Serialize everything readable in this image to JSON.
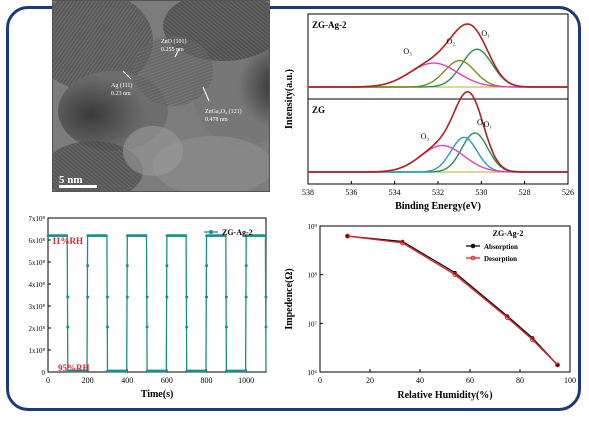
{
  "colors": {
    "frame": "#1c3a78",
    "teal": "#1a8f8a",
    "red": "#e0202a",
    "black": "#111111"
  },
  "tem": {
    "scale_bar": "5 nm",
    "labels": [
      {
        "line1": "Ag (111)",
        "line2": "0.23 nm"
      },
      {
        "line1": "ZnO (101)",
        "line2": "0.255 nm"
      },
      {
        "line1": "ZnGa₂O₄ (121)",
        "line2": "0.478 nm"
      }
    ]
  },
  "chart_data": [
    {
      "type": "line",
      "title": "",
      "xlabel": "Binding Energy(eV)",
      "ylabel": "Intensity(a.u.)",
      "xlim": [
        538,
        526
      ],
      "x_ticks": [
        538,
        536,
        534,
        532,
        530,
        528,
        526
      ],
      "panels": [
        {
          "label": "ZG-Ag-2",
          "peak_labels": [
            "O₁",
            "O₂",
            "O₃"
          ],
          "peaks": [
            {
              "name": "O₁",
              "center": 530.2,
              "height": 0.6,
              "width": 0.7,
              "color": "#2e8b57"
            },
            {
              "name": "O₂",
              "center": 531.0,
              "height": 0.42,
              "width": 0.7,
              "color": "#7a8a1a"
            },
            {
              "name": "O₃",
              "center": 532.2,
              "height": 0.38,
              "width": 1.1,
              "color": "#e040c0"
            }
          ],
          "envelope_color": "#b02020"
        },
        {
          "label": "ZG",
          "peak_labels": [
            "O₁",
            "O₂",
            "O₃"
          ],
          "peaks": [
            {
              "name": "O₁",
              "center": 530.3,
              "height": 0.62,
              "width": 0.6,
              "color": "#2e8b57"
            },
            {
              "name": "O₂",
              "center": 530.8,
              "height": 0.55,
              "width": 0.6,
              "color": "#2a9db5"
            },
            {
              "name": "O₃",
              "center": 531.8,
              "height": 0.42,
              "width": 1.0,
              "color": "#e040c0"
            }
          ],
          "envelope_color": "#b02020"
        }
      ]
    },
    {
      "type": "line",
      "title": "",
      "xlabel": "Time(s)",
      "ylabel": "",
      "xlim": [
        0,
        1100
      ],
      "ylim": [
        0,
        700000000
      ],
      "x_ticks": [
        0,
        200,
        400,
        600,
        800,
        1000
      ],
      "y_ticks": [
        "0",
        "1x10⁸",
        "2x10⁸",
        "3x10⁸",
        "4x10⁸",
        "5x10⁸",
        "6x10⁸",
        "7x10⁸"
      ],
      "y_tick_values": [
        0,
        100000000,
        200000000,
        300000000,
        400000000,
        500000000,
        600000000,
        700000000
      ],
      "annotations": [
        "11%RH",
        "95%RH"
      ],
      "series": [
        {
          "name": "ZG-Ag-2",
          "color": "#1a8f8a",
          "cycles": [
            [
              0,
              100,
              200
            ],
            [
              200,
              300,
              400
            ],
            [
              400,
              500,
              600
            ],
            [
              600,
              700,
              800
            ],
            [
              800,
              900,
              1000
            ],
            [
              1000,
              1100,
              1100
            ]
          ],
          "high": 620000000,
          "low": 5000000
        }
      ]
    },
    {
      "type": "line",
      "title": "ZG-Ag-2",
      "xlabel": "Relative Humidity(%)",
      "ylabel": "Impedence(Ω)",
      "xlim": [
        0,
        100
      ],
      "y_log": true,
      "y_range_exp": [
        6,
        9
      ],
      "x_ticks": [
        0,
        20,
        40,
        60,
        80,
        100
      ],
      "y_ticks": [
        "10⁶",
        "10⁷",
        "10⁸",
        "10⁹"
      ],
      "y_tick_exps": [
        6,
        7,
        8,
        9
      ],
      "series": [
        {
          "name": "Absorption",
          "color": "#111111",
          "x": [
            11,
            33,
            54,
            75,
            85,
            95
          ],
          "y": [
            620000000,
            480000000,
            110000000,
            14000000,
            5000000,
            1400000
          ]
        },
        {
          "name": "Desorption",
          "color": "#e0202a",
          "x": [
            11,
            33,
            54,
            75,
            85,
            95
          ],
          "y": [
            620000000,
            450000000,
            100000000,
            13000000,
            4600000,
            1400000
          ]
        }
      ]
    }
  ]
}
